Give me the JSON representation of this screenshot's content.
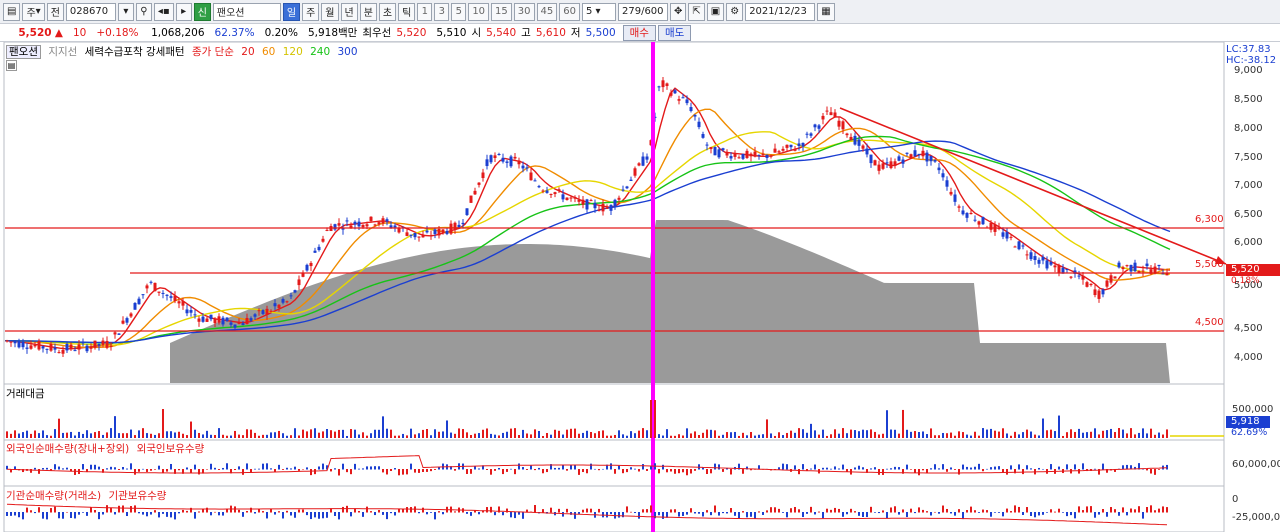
{
  "toolbar": {
    "period": "주",
    "mode": "전",
    "code": "028670",
    "stock_name": "팬오션",
    "credit_badge": "신",
    "periods": [
      "일",
      "주",
      "월",
      "년",
      "분",
      "초",
      "틱"
    ],
    "intervals": [
      "1",
      "3",
      "5",
      "10",
      "15",
      "30",
      "45",
      "60"
    ],
    "interval_value": "5",
    "count": "279/600",
    "date": "2021/12/23"
  },
  "quote": {
    "price": "5,520",
    "change_arrow": "▲",
    "change": "10",
    "change_pct": "+0.18%",
    "volume": "1,068,206",
    "ratio": "62.37%",
    "turnover_pct": "0.20%",
    "amount": "5,918백만",
    "best_label": "최우선",
    "best": "5,520",
    "open": "5,510",
    "open_label": "시",
    "high": "5,540",
    "high_label": "고",
    "low": "5,610",
    "low_label": "저",
    "close": "5,500",
    "buy_label": "매수",
    "sell_label": "매도"
  },
  "price_panel": {
    "tab_active": "팬오션",
    "tab_inactive": "지지선",
    "pattern_label": "세력수급포착 강세패턴",
    "ma_label": "종가 단순",
    "ma_periods": [
      "20",
      "60",
      "120",
      "240",
      "300"
    ],
    "ma_colors": [
      "#e31a1a",
      "#f08c00",
      "#e6d600",
      "#17c317",
      "#1b3fd1"
    ],
    "lc": "LC:37.83",
    "hc": "HC:-38.12",
    "y_ticks": [
      "9,000",
      "8,500",
      "8,000",
      "7,500",
      "7,000",
      "6,500",
      "6,000",
      "5,500",
      "5,000",
      "4,500",
      "4,000"
    ],
    "levels": [
      "6,300",
      "5,500",
      "4,500"
    ],
    "current_price": "5,520",
    "current_pct": "0.18%"
  },
  "volume_panel": {
    "title": "거래대금",
    "y_tick": "500,000",
    "current": "5,918",
    "ratio": "62.69%"
  },
  "foreign_panel": {
    "title": "외국인순매수량(장내+장외)",
    "title2": "외국인보유수량",
    "y_tick": "60,000,000"
  },
  "inst_panel": {
    "title": "기관순매수량(거래소)",
    "title2": "기관보유수량",
    "y_tick_top": "0",
    "y_tick_bottom": "-25,000,000"
  }
}
